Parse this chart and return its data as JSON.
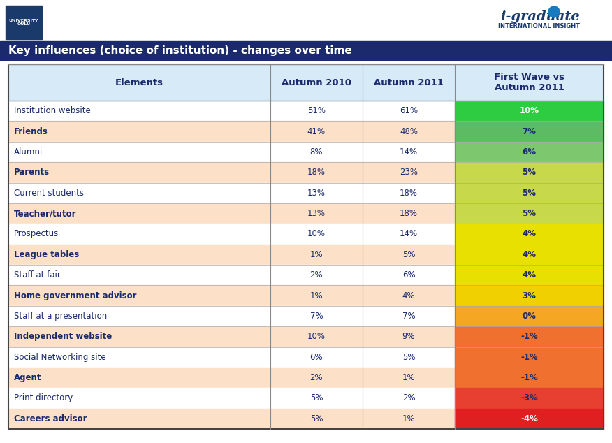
{
  "title": "Key influences (choice of institution) - changes over time",
  "header_bg": "#1a2a6c",
  "table_header": [
    "Elements",
    "Autumn 2010",
    "Autumn 2011",
    "First Wave vs\nAutumn 2011"
  ],
  "rows": [
    {
      "element": "Institution website",
      "val1": "51%",
      "val2": "61%",
      "change": "10%",
      "change_val": 10,
      "row_bg": "#ffffff",
      "text_color": "#1a2a6c"
    },
    {
      "element": "Friends",
      "val1": "41%",
      "val2": "48%",
      "change": "7%",
      "change_val": 7,
      "row_bg": "#fde0c8",
      "text_color": "#1a2a6c"
    },
    {
      "element": "Alumni",
      "val1": "8%",
      "val2": "14%",
      "change": "6%",
      "change_val": 6,
      "row_bg": "#ffffff",
      "text_color": "#1a2a6c"
    },
    {
      "element": "Parents",
      "val1": "18%",
      "val2": "23%",
      "change": "5%",
      "change_val": 5,
      "row_bg": "#fde0c8",
      "text_color": "#1a2a6c"
    },
    {
      "element": "Current students",
      "val1": "13%",
      "val2": "18%",
      "change": "5%",
      "change_val": 5,
      "row_bg": "#ffffff",
      "text_color": "#1a2a6c"
    },
    {
      "element": "Teacher/tutor",
      "val1": "13%",
      "val2": "18%",
      "change": "5%",
      "change_val": 5,
      "row_bg": "#fde0c8",
      "text_color": "#1a2a6c"
    },
    {
      "element": "Prospectus",
      "val1": "10%",
      "val2": "14%",
      "change": "4%",
      "change_val": 4,
      "row_bg": "#ffffff",
      "text_color": "#1a2a6c"
    },
    {
      "element": "League tables",
      "val1": "1%",
      "val2": "5%",
      "change": "4%",
      "change_val": 4,
      "row_bg": "#fde0c8",
      "text_color": "#1a2a6c"
    },
    {
      "element": "Staff at fair",
      "val1": "2%",
      "val2": "6%",
      "change": "4%",
      "change_val": 4,
      "row_bg": "#ffffff",
      "text_color": "#1a2a6c"
    },
    {
      "element": "Home government advisor",
      "val1": "1%",
      "val2": "4%",
      "change": "3%",
      "change_val": 3,
      "row_bg": "#fde0c8",
      "text_color": "#1a2a6c"
    },
    {
      "element": "Staff at a presentation",
      "val1": "7%",
      "val2": "7%",
      "change": "0%",
      "change_val": 0,
      "row_bg": "#ffffff",
      "text_color": "#1a2a6c"
    },
    {
      "element": "Independent website",
      "val1": "10%",
      "val2": "9%",
      "change": "-1%",
      "change_val": -1,
      "row_bg": "#fde0c8",
      "text_color": "#1a2a6c"
    },
    {
      "element": "Social Networking site",
      "val1": "6%",
      "val2": "5%",
      "change": "-1%",
      "change_val": -1,
      "row_bg": "#ffffff",
      "text_color": "#1a2a6c"
    },
    {
      "element": "Agent",
      "val1": "2%",
      "val2": "1%",
      "change": "-1%",
      "change_val": -1,
      "row_bg": "#fde0c8",
      "text_color": "#1a2a6c"
    },
    {
      "element": "Print directory",
      "val1": "5%",
      "val2": "2%",
      "change": "-3%",
      "change_val": -3,
      "row_bg": "#ffffff",
      "text_color": "#1a2a6c"
    },
    {
      "element": "Careers advisor",
      "val1": "5%",
      "val2": "1%",
      "change": "-4%",
      "change_val": -4,
      "row_bg": "#fde0c8",
      "text_color": "#1a2a6c"
    }
  ],
  "col_header_bg": "#d6eaf8",
  "col_header_text": "#1a2a6c",
  "change_colors": {
    "10": "#2ecc40",
    "7": "#5dbb63",
    "6": "#7dc86e",
    "5": "#c8d84b",
    "4": "#e8e000",
    "3": "#f0d000",
    "0": "#f5a623",
    "-1": "#f07030",
    "-3": "#e84030",
    "-4": "#e02020"
  },
  "change_text_colors": {
    "10": "#ffffff",
    "7": "#1a2a6c",
    "6": "#1a2a6c",
    "5": "#1a2a6c",
    "4": "#1a2a6c",
    "3": "#1a2a6c",
    "0": "#1a2a6c",
    "-1": "#1a2a6c",
    "-3": "#1a2a6c",
    "-4": "#ffffff"
  }
}
